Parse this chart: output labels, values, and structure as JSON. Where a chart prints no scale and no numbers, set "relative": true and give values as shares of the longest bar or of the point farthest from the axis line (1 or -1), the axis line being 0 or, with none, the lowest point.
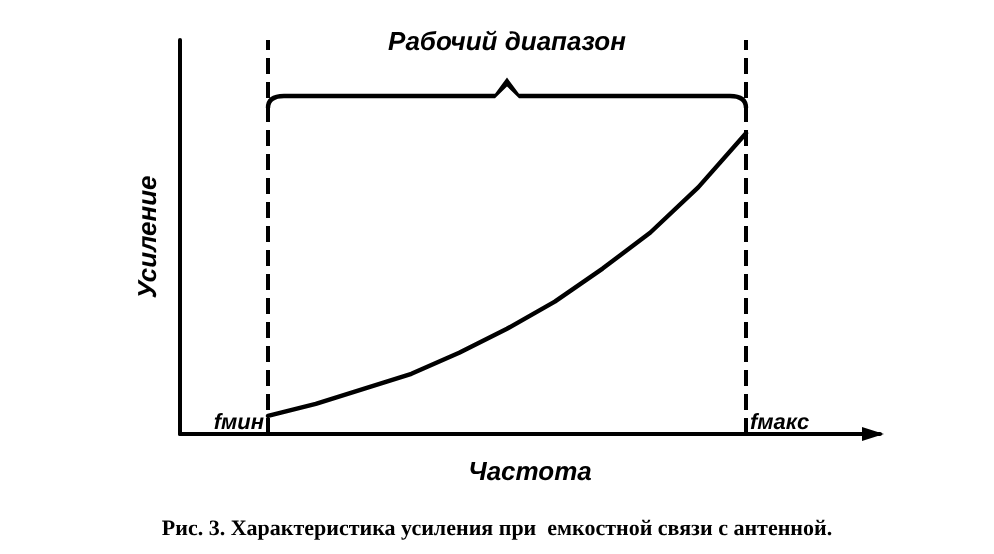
{
  "chart_data": {
    "type": "line",
    "relative": true,
    "title": "Рабочий диапазон",
    "xlabel": "Частота",
    "ylabel": "Усиление",
    "categories": [
      null,
      null,
      null,
      null,
      null,
      null,
      null,
      null,
      null,
      null,
      null
    ],
    "series": [
      {
        "color": "#000000",
        "values": [
          0.06,
          0.1,
          0.15,
          0.2,
          0.27,
          0.35,
          0.44,
          0.55,
          0.67,
          0.82,
          1
        ]
      }
    ],
    "ref_lines": [
      {
        "axis": "x",
        "label": "fмин",
        "line_style": "dashed"
      },
      {
        "axis": "x",
        "label": "fмакс",
        "line_style": "dashed"
      }
    ],
    "annotations": [
      "Рис. 3. Характеристика усиления при  емкостной связи с антенной."
    ],
    "grid": false,
    "marker": "none",
    "line_style": "solid"
  }
}
